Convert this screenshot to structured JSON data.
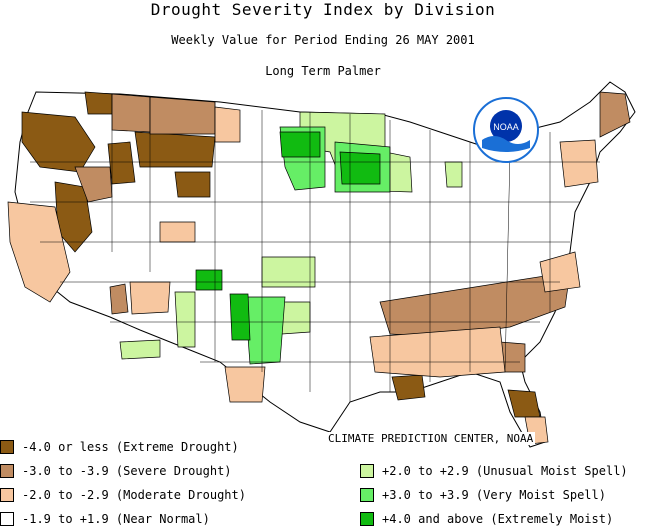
{
  "header": {
    "title": "Drought Severity Index by Division",
    "subtitle": "Weekly Value for Period Ending 26 MAY 2001",
    "index_name": "Long Term Palmer"
  },
  "logo": {
    "text": "NOAA",
    "ring_color": "#1a6fd6",
    "core_color": "#0033aa"
  },
  "credit": "CLIMATE PREDICTION CENTER, NOAA",
  "colors": {
    "extreme_drought": "#8b5a14",
    "severe_drought": "#c08c62",
    "moderate_drought": "#f7c7a0",
    "near_normal": "#ffffff",
    "unusual_moist": "#ccf5a0",
    "very_moist": "#66ee66",
    "extremely_moist": "#11bb11",
    "boundary": "#000000"
  },
  "legend": {
    "extreme": "-4.0 or less (Extreme Drought)",
    "severe": "-3.0 to -3.9 (Severe Drought)",
    "moderate": "-2.0 to -2.9 (Moderate Drought)",
    "normal": "-1.9 to +1.9 (Near Normal)",
    "unusual_moist": "+2.0 to +2.9 (Unusual Moist Spell)",
    "very_moist": "+3.0 to +3.9 (Very Moist Spell)",
    "extremely_moist": "+4.0 and above (Extremely Moist)"
  }
}
